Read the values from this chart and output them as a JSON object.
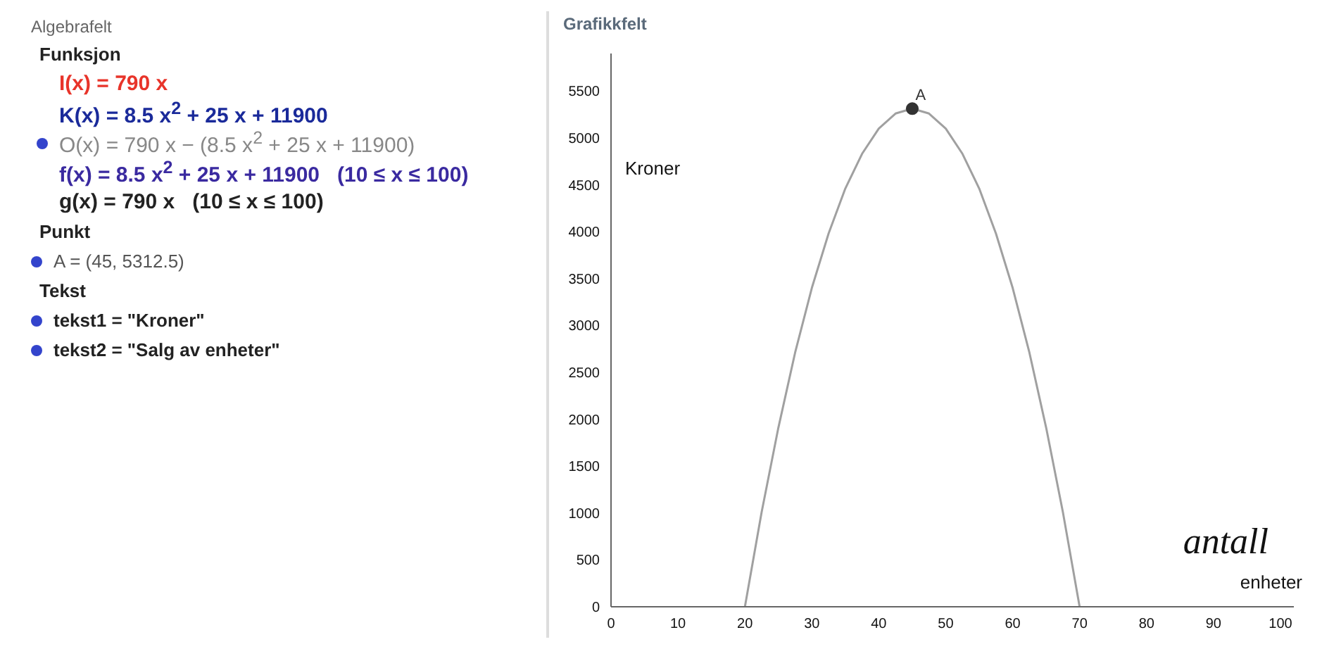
{
  "chart_data": {
    "type": "line",
    "title": "Grafikkfelt",
    "ylabel": "Kroner",
    "xlabel": "enheter",
    "xlim": [
      0,
      102
    ],
    "xticks": [
      0,
      10,
      20,
      30,
      40,
      50,
      60,
      70,
      80,
      90,
      100
    ],
    "ylim": [
      0,
      5900
    ],
    "yticks": [
      0,
      500,
      1000,
      1500,
      2000,
      2500,
      3000,
      3500,
      4000,
      4500,
      5000,
      5500
    ],
    "grid": false,
    "legend": false,
    "series": [
      {
        "color": "#a0a0a0",
        "marker": "none",
        "x": [
          20,
          22.5,
          25,
          27.5,
          30,
          32.5,
          35,
          37.5,
          40,
          42.5,
          45,
          47.5,
          50,
          52.5,
          55,
          57.5,
          60,
          62.5,
          65,
          67.5,
          70
        ],
        "values": [
          0,
          1010,
          1910,
          2710,
          3400,
          3980,
          4460,
          4830,
          5100,
          5260,
          5312.5,
          5260,
          5100,
          4830,
          4460,
          3980,
          3400,
          2710,
          1910,
          1010,
          0
        ]
      },
      {
        "type": "scatter",
        "color": "#333333",
        "marker": "circle",
        "x": [
          45
        ],
        "values": [
          5312.5
        ]
      }
    ],
    "annotations": [
      "Algebrafelt",
      "Funksjon",
      "I(x) = 790 x",
      "K(x) = 8.5 x$^{2}$ + 25 x + 11900",
      "O(x) = 790 x − (8.5 x$^{2}$ + 25 x + 11900)",
      "f(x) = 8.5 x$^{2}$ + 25 x + 11900   (10 ≤ x ≤ 100)",
      "g(x) = 790 x   (10 ≤ x ≤ 100)",
      "Punkt",
      "A = (45, 5312.5)",
      "Tekst",
      "tekst1 = \"Kroner\"",
      "tekst2 = \"Salg av enheter\"",
      {
        "text": "A",
        "x": 45,
        "y": 5312.5
      },
      "antall"
    ]
  }
}
